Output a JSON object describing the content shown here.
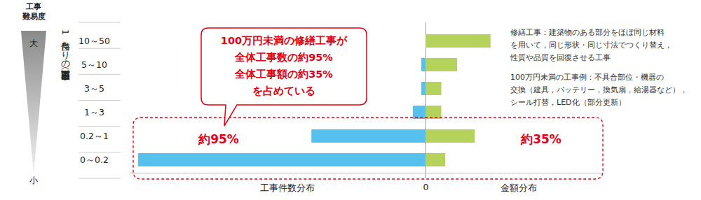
{
  "chart_data": [
    {
      "type": "bar",
      "orientation": "horizontal",
      "x_label": "工事件数分布",
      "y_label": "1件当たりの工事金額（百万円）",
      "categories": [
        "10～50",
        "5～10",
        "3～5",
        "1～3",
        "0.2～1",
        "0～0.2"
      ],
      "values": [
        0,
        1,
        1,
        3,
        27,
        68
      ],
      "color": "#56c1ec",
      "xlim": [
        0,
        70
      ],
      "xticks": [
        0
      ]
    },
    {
      "type": "bar",
      "orientation": "horizontal",
      "x_label": "金額分布",
      "categories": [
        "10～50",
        "5～10",
        "3～5",
        "1～3",
        "0.2～1",
        "0～0.2"
      ],
      "values": [
        33,
        16,
        8,
        8,
        25,
        10
      ],
      "color": "#b5d25a",
      "xlim": [
        0,
        90
      ],
      "xticks": [],
      "tick_labels": false
    }
  ],
  "annotations": {
    "difficulty": {
      "title": [
        "工事",
        "難易度"
      ],
      "high": "大",
      "low": "小"
    },
    "callout": [
      "100万円未満の修繕工事が",
      "全体工事数の約95%",
      "全体工事額の約35%",
      "を占めている"
    ],
    "box_labels": [
      "約95%",
      "約35%"
    ],
    "notes": [
      [
        "修繕工事：建築物のある部分をほぼ同じ材料",
        "を用いて，同じ形状・同じ寸法でつくり替え，",
        "性質や品質を回復させる工事"
      ],
      [
        "100万円未満の工事例：不具合部位・機器の",
        "交換（建具，バッテリー，換気扇，給湯器など），",
        "シール打替，LED化（部分更新）"
      ]
    ]
  }
}
